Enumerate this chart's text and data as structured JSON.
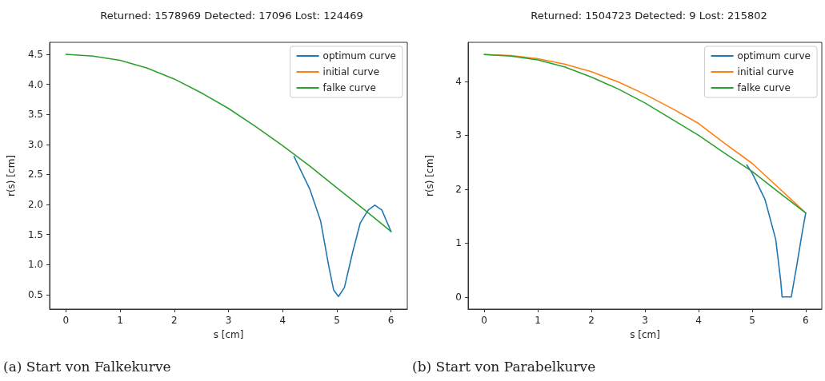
{
  "chart_data": [
    {
      "type": "line",
      "title": "Returned: 1578969 Detected: 17096 Lost: 124469",
      "xlabel": "s [cm]",
      "ylabel": "r(s) [cm]",
      "annotations": [
        "(a) Start von Falkekurve"
      ],
      "xlim": [
        -0.3,
        6.3
      ],
      "ylim": [
        0.26,
        4.7
      ],
      "xticks": [
        0,
        1,
        2,
        3,
        4,
        5,
        6
      ],
      "yticks": [
        0.5,
        {
          "value": 1,
          "label": "1.0"
        },
        1.5,
        {
          "value": 2,
          "label": "2.0"
        },
        2.5,
        {
          "value": 3,
          "label": "3.0"
        },
        3.5,
        {
          "value": 4,
          "label": "4.0"
        },
        4.5
      ],
      "legend": "top right",
      "grid": false,
      "marker": "none",
      "line_style": "solid",
      "series": [
        {
          "name": "optimum curve",
          "color": "#1f77b4",
          "x": [
            4.21,
            4.5,
            4.7,
            4.85,
            4.94,
            5.03,
            5.14,
            5.29,
            5.43,
            5.58,
            5.7,
            5.83,
            6
          ],
          "values": [
            2.8,
            2.26,
            1.73,
            0.98,
            0.58,
            0.47,
            0.62,
            1.2,
            1.69,
            1.91,
            1.99,
            1.91,
            1.55
          ]
        },
        {
          "name": "initial curve",
          "color": "#ff7f0e"
        },
        {
          "name": "falke curve",
          "color": "#2ca02c",
          "x": [
            0,
            0.5,
            1,
            1.5,
            2,
            2.5,
            3,
            3.5,
            4,
            4.5,
            5,
            5.5,
            6
          ],
          "values": [
            4.5,
            4.47,
            4.4,
            4.27,
            4.09,
            3.86,
            3.6,
            3.3,
            2.98,
            2.64,
            2.28,
            1.92,
            1.55
          ]
        }
      ]
    },
    {
      "type": "line",
      "title": "Returned: 1504723 Detected: 9 Lost: 215802",
      "xlabel": "s [cm]",
      "ylabel": "r(s) [cm]",
      "annotations": [
        "(b) Start von Parabelkurve"
      ],
      "xlim": [
        -0.3,
        6.3
      ],
      "ylim": [
        -0.225,
        4.725
      ],
      "xticks": [
        0,
        1,
        2,
        3,
        4,
        5,
        6
      ],
      "yticks": [
        0,
        1,
        2,
        3,
        4
      ],
      "legend": "top right",
      "grid": false,
      "marker": "none",
      "line_style": "solid",
      "series": [
        {
          "name": "optimum curve",
          "color": "#1f77b4",
          "x": [
            4.9,
            5.0,
            5.24,
            5.44,
            5.53,
            5.56,
            5.73,
            5.83,
            5.93,
            6
          ],
          "values": [
            2.45,
            2.3,
            1.81,
            1.07,
            0.33,
            0,
            0,
            0.57,
            1.17,
            1.56
          ]
        },
        {
          "name": "initial curve",
          "color": "#ff7f0e",
          "x": [
            0,
            0.5,
            1,
            1.5,
            2,
            2.5,
            3,
            3.5,
            4,
            4.5,
            5,
            5.5,
            6
          ],
          "values": [
            4.5,
            4.48,
            4.42,
            4.32,
            4.18,
            3.99,
            3.76,
            3.5,
            3.22,
            2.84,
            2.48,
            2.02,
            1.56
          ]
        },
        {
          "name": "falke curve",
          "color": "#2ca02c",
          "x": [
            0,
            0.5,
            1,
            1.5,
            2,
            2.5,
            3,
            3.5,
            4,
            4.5,
            5,
            5.5,
            6
          ],
          "values": [
            4.5,
            4.47,
            4.4,
            4.27,
            4.08,
            3.86,
            3.6,
            3.3,
            3.0,
            2.66,
            2.33,
            1.94,
            1.56
          ]
        }
      ]
    }
  ]
}
